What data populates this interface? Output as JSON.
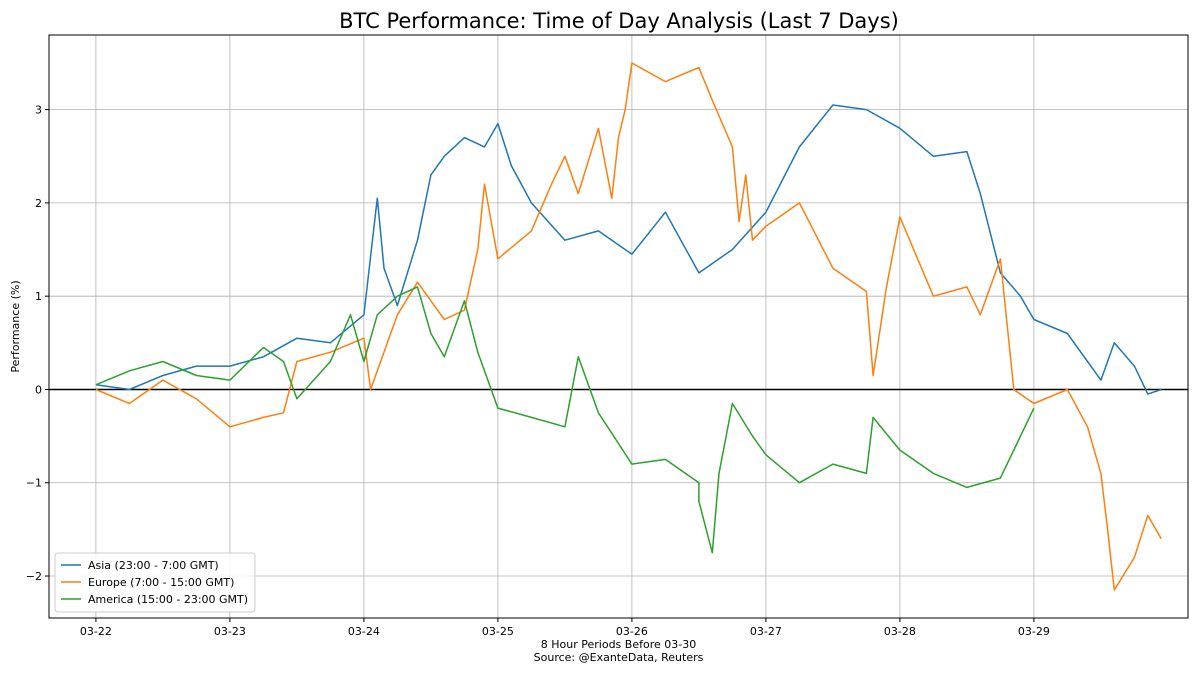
{
  "chart_data": {
    "type": "line",
    "title": "BTC Performance: Time of Day Analysis (Last 7 Days)",
    "xlabel": "8 Hour Periods Before 03-30",
    "source": "Source: @ExanteData, Reuters",
    "ylabel": "Performance (%)",
    "xlim": [
      -0.35,
      8.15
    ],
    "ylim": [
      -2.45,
      3.8
    ],
    "x_ticks": [
      0,
      1,
      2,
      3,
      4,
      5,
      6,
      7
    ],
    "x_tick_labels": [
      "03-22",
      "03-23",
      "03-24",
      "03-25",
      "03-26",
      "03-27",
      "03-28",
      "03-29"
    ],
    "y_ticks": [
      -2,
      -1,
      0,
      1,
      2,
      3
    ],
    "y_tick_labels": [
      "−2",
      "−1",
      "0",
      "1",
      "2",
      "3"
    ],
    "grid": true,
    "zero_line": true,
    "legend_position": "lower-left",
    "series": [
      {
        "name": "Asia (23:00 - 7:00 GMT)",
        "color": "#1f77b4",
        "x": [
          0,
          0.25,
          0.5,
          0.75,
          1.0,
          1.25,
          1.5,
          1.75,
          2.0,
          2.1,
          2.15,
          2.25,
          2.4,
          2.5,
          2.6,
          2.75,
          2.9,
          3.0,
          3.1,
          3.25,
          3.5,
          3.75,
          4.0,
          4.25,
          4.5,
          4.75,
          5.0,
          5.25,
          5.5,
          5.75,
          6.0,
          6.25,
          6.5,
          6.6,
          6.75,
          6.9,
          7.0,
          7.25,
          7.5,
          7.6,
          7.75,
          7.85,
          7.95
        ],
        "y": [
          0.05,
          0.0,
          0.15,
          0.25,
          0.25,
          0.35,
          0.55,
          0.5,
          0.8,
          2.05,
          1.3,
          0.9,
          1.6,
          2.3,
          2.5,
          2.7,
          2.6,
          2.85,
          2.4,
          2.0,
          1.6,
          1.7,
          1.45,
          1.9,
          1.25,
          1.5,
          1.9,
          2.6,
          3.05,
          3.0,
          2.8,
          2.5,
          2.55,
          2.1,
          1.25,
          1.0,
          0.75,
          0.6,
          0.1,
          0.5,
          0.25,
          -0.05,
          0.0
        ]
      },
      {
        "name": "Europe (7:00 - 15:00 GMT)",
        "color": "#ff7f0e",
        "x": [
          0,
          0.25,
          0.5,
          0.75,
          1.0,
          1.25,
          1.4,
          1.5,
          1.75,
          2.0,
          2.05,
          2.25,
          2.4,
          2.6,
          2.75,
          2.85,
          2.9,
          3.0,
          3.25,
          3.4,
          3.5,
          3.6,
          3.75,
          3.85,
          3.9,
          3.95,
          4.0,
          4.25,
          4.5,
          4.6,
          4.75,
          4.8,
          4.85,
          4.9,
          5.0,
          5.25,
          5.5,
          5.75,
          5.8,
          5.9,
          6.0,
          6.25,
          6.5,
          6.6,
          6.75,
          6.85,
          7.0,
          7.25,
          7.4,
          7.5,
          7.55,
          7.6,
          7.75,
          7.85,
          7.95
        ],
        "y": [
          0.0,
          -0.15,
          0.1,
          -0.1,
          -0.4,
          -0.3,
          -0.25,
          0.3,
          0.4,
          0.55,
          0.0,
          0.8,
          1.15,
          0.75,
          0.85,
          1.5,
          2.2,
          1.4,
          1.7,
          2.2,
          2.5,
          2.1,
          2.8,
          2.05,
          2.7,
          3.0,
          3.5,
          3.3,
          3.45,
          3.1,
          2.6,
          1.8,
          2.3,
          1.6,
          1.75,
          2.0,
          1.3,
          1.05,
          0.15,
          1.1,
          1.85,
          1.0,
          1.1,
          0.8,
          1.4,
          0.0,
          -0.15,
          0.0,
          -0.4,
          -0.9,
          -1.5,
          -2.15,
          -1.8,
          -1.35,
          -1.6
        ]
      },
      {
        "name": "America (15:00 - 23:00 GMT)",
        "color": "#2ca02c",
        "x": [
          0,
          0.25,
          0.5,
          0.75,
          1.0,
          1.25,
          1.4,
          1.5,
          1.75,
          1.9,
          2.0,
          2.1,
          2.25,
          2.4,
          2.5,
          2.6,
          2.75,
          2.85,
          3.0,
          3.25,
          3.5,
          3.6,
          3.75,
          4.0,
          4.25,
          4.5,
          4.5,
          4.6,
          4.65,
          4.75,
          4.9,
          5.0,
          5.25,
          5.5,
          5.75,
          5.8,
          6.0,
          6.25,
          6.5,
          6.75,
          7.0
        ],
        "y": [
          0.05,
          0.2,
          0.3,
          0.15,
          0.1,
          0.45,
          0.3,
          -0.1,
          0.3,
          0.8,
          0.3,
          0.8,
          1.0,
          1.1,
          0.6,
          0.35,
          0.95,
          0.4,
          -0.2,
          -0.3,
          -0.4,
          0.35,
          -0.25,
          -0.8,
          -0.75,
          -1.0,
          -1.2,
          -1.75,
          -0.9,
          -0.15,
          -0.5,
          -0.7,
          -1.0,
          -0.8,
          -0.9,
          -0.3,
          -0.65,
          -0.9,
          -1.05,
          -0.95,
          -0.2
        ]
      }
    ]
  }
}
